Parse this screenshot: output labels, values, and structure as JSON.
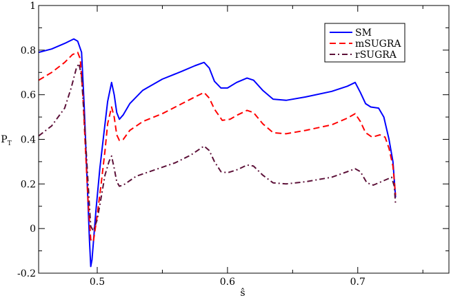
{
  "chart_data": {
    "type": "line",
    "title": "",
    "xlabel": "ŝ",
    "ylabel": "P",
    "ylabel_subscript": "T",
    "xlim": [
      0.455,
      0.77
    ],
    "ylim": [
      -0.2,
      1.0
    ],
    "x_ticks": [
      "0.5",
      "0.6",
      "0.7"
    ],
    "x_tick_values": [
      0.5,
      0.6,
      0.7
    ],
    "y_ticks": [
      "-0.2",
      "0",
      "0.2",
      "0.4",
      "0.6",
      "0.8",
      "1"
    ],
    "y_tick_values": [
      -0.2,
      0.0,
      0.2,
      0.4,
      0.6,
      0.8,
      1.0
    ],
    "grid": false,
    "legend_position": "top-right",
    "series": [
      {
        "name": "SM",
        "color": "#0000ff",
        "dash": "solid",
        "points": [
          [
            0.455,
            0.79
          ],
          [
            0.465,
            0.805
          ],
          [
            0.475,
            0.83
          ],
          [
            0.482,
            0.85
          ],
          [
            0.485,
            0.84
          ],
          [
            0.488,
            0.79
          ],
          [
            0.49,
            0.55
          ],
          [
            0.492,
            0.25
          ],
          [
            0.494,
            -0.05
          ],
          [
            0.495,
            -0.17
          ],
          [
            0.496,
            -0.14
          ],
          [
            0.499,
            0.08
          ],
          [
            0.502,
            0.27
          ],
          [
            0.505,
            0.42
          ],
          [
            0.508,
            0.57
          ],
          [
            0.511,
            0.655
          ],
          [
            0.513,
            0.6
          ],
          [
            0.515,
            0.52
          ],
          [
            0.517,
            0.49
          ],
          [
            0.52,
            0.51
          ],
          [
            0.525,
            0.56
          ],
          [
            0.535,
            0.62
          ],
          [
            0.55,
            0.67
          ],
          [
            0.565,
            0.705
          ],
          [
            0.575,
            0.73
          ],
          [
            0.582,
            0.745
          ],
          [
            0.586,
            0.72
          ],
          [
            0.59,
            0.66
          ],
          [
            0.595,
            0.63
          ],
          [
            0.6,
            0.63
          ],
          [
            0.607,
            0.655
          ],
          [
            0.615,
            0.675
          ],
          [
            0.62,
            0.665
          ],
          [
            0.627,
            0.62
          ],
          [
            0.635,
            0.58
          ],
          [
            0.645,
            0.575
          ],
          [
            0.66,
            0.59
          ],
          [
            0.68,
            0.615
          ],
          [
            0.692,
            0.638
          ],
          [
            0.698,
            0.655
          ],
          [
            0.702,
            0.61
          ],
          [
            0.706,
            0.56
          ],
          [
            0.71,
            0.545
          ],
          [
            0.716,
            0.54
          ],
          [
            0.72,
            0.5
          ],
          [
            0.724,
            0.4
          ],
          [
            0.727,
            0.3
          ],
          [
            0.729,
            0.14
          ]
        ]
      },
      {
        "name": "mSUGRA",
        "color": "#ff0000",
        "dash": "dashed",
        "points": [
          [
            0.455,
            0.665
          ],
          [
            0.465,
            0.7
          ],
          [
            0.475,
            0.745
          ],
          [
            0.481,
            0.78
          ],
          [
            0.485,
            0.79
          ],
          [
            0.487,
            0.76
          ],
          [
            0.489,
            0.6
          ],
          [
            0.491,
            0.35
          ],
          [
            0.493,
            0.12
          ],
          [
            0.495,
            -0.05
          ],
          [
            0.497,
            -0.06
          ],
          [
            0.5,
            0.06
          ],
          [
            0.503,
            0.2
          ],
          [
            0.506,
            0.35
          ],
          [
            0.508,
            0.47
          ],
          [
            0.511,
            0.545
          ],
          [
            0.513,
            0.5
          ],
          [
            0.515,
            0.42
          ],
          [
            0.517,
            0.395
          ],
          [
            0.52,
            0.4
          ],
          [
            0.525,
            0.44
          ],
          [
            0.535,
            0.48
          ],
          [
            0.55,
            0.515
          ],
          [
            0.565,
            0.56
          ],
          [
            0.575,
            0.59
          ],
          [
            0.582,
            0.61
          ],
          [
            0.586,
            0.585
          ],
          [
            0.59,
            0.535
          ],
          [
            0.596,
            0.485
          ],
          [
            0.602,
            0.49
          ],
          [
            0.608,
            0.51
          ],
          [
            0.615,
            0.53
          ],
          [
            0.62,
            0.52
          ],
          [
            0.627,
            0.47
          ],
          [
            0.635,
            0.43
          ],
          [
            0.645,
            0.425
          ],
          [
            0.66,
            0.44
          ],
          [
            0.68,
            0.465
          ],
          [
            0.692,
            0.495
          ],
          [
            0.698,
            0.515
          ],
          [
            0.702,
            0.48
          ],
          [
            0.706,
            0.43
          ],
          [
            0.711,
            0.41
          ],
          [
            0.717,
            0.42
          ],
          [
            0.721,
            0.41
          ],
          [
            0.724,
            0.36
          ],
          [
            0.727,
            0.28
          ],
          [
            0.729,
            0.15
          ]
        ]
      },
      {
        "name": "rSUGRA",
        "color": "#5c1038",
        "dash": "dashdot",
        "points": [
          [
            0.455,
            0.415
          ],
          [
            0.465,
            0.46
          ],
          [
            0.475,
            0.54
          ],
          [
            0.48,
            0.63
          ],
          [
            0.484,
            0.72
          ],
          [
            0.486,
            0.74
          ],
          [
            0.488,
            0.68
          ],
          [
            0.49,
            0.5
          ],
          [
            0.492,
            0.3
          ],
          [
            0.494,
            0.1
          ],
          [
            0.495,
            0.01
          ],
          [
            0.497,
            -0.01
          ],
          [
            0.5,
            0.04
          ],
          [
            0.503,
            0.14
          ],
          [
            0.506,
            0.24
          ],
          [
            0.509,
            0.3
          ],
          [
            0.511,
            0.325
          ],
          [
            0.513,
            0.27
          ],
          [
            0.515,
            0.21
          ],
          [
            0.517,
            0.19
          ],
          [
            0.52,
            0.195
          ],
          [
            0.53,
            0.235
          ],
          [
            0.545,
            0.265
          ],
          [
            0.56,
            0.295
          ],
          [
            0.572,
            0.33
          ],
          [
            0.582,
            0.37
          ],
          [
            0.586,
            0.35
          ],
          [
            0.59,
            0.3
          ],
          [
            0.595,
            0.255
          ],
          [
            0.6,
            0.25
          ],
          [
            0.608,
            0.265
          ],
          [
            0.615,
            0.285
          ],
          [
            0.62,
            0.28
          ],
          [
            0.627,
            0.24
          ],
          [
            0.635,
            0.205
          ],
          [
            0.645,
            0.2
          ],
          [
            0.66,
            0.21
          ],
          [
            0.68,
            0.23
          ],
          [
            0.692,
            0.255
          ],
          [
            0.698,
            0.268
          ],
          [
            0.702,
            0.255
          ],
          [
            0.707,
            0.205
          ],
          [
            0.712,
            0.195
          ],
          [
            0.72,
            0.215
          ],
          [
            0.726,
            0.23
          ],
          [
            0.728,
            0.19
          ],
          [
            0.729,
            0.11
          ]
        ]
      }
    ]
  }
}
